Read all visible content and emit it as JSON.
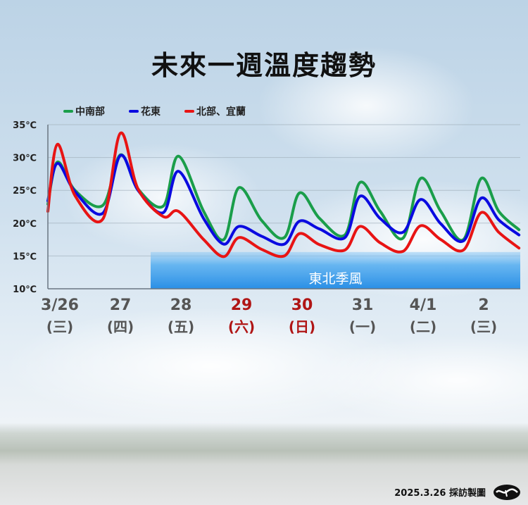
{
  "title": "未來一週溫度趨勢",
  "credit": "2025.3.26 採訪製圖",
  "logo": "cna-logo",
  "chart_data": {
    "type": "line",
    "title": "未來一週溫度趨勢",
    "ylim": [
      10,
      35
    ],
    "y_ticks": [
      "35℃",
      "30℃",
      "25℃",
      "20℃",
      "15℃",
      "10℃"
    ],
    "y_tick_values": [
      35,
      30,
      25,
      20,
      15,
      10
    ],
    "grid": true,
    "smooth": true,
    "legend_placement": "top-left",
    "x_days": [
      {
        "date": "3/26",
        "label": "3/26",
        "weekday": "(三)",
        "color": "#555555"
      },
      {
        "date": "3/27",
        "label": "27",
        "weekday": "(四)",
        "color": "#555555"
      },
      {
        "date": "3/28",
        "label": "28",
        "weekday": "(五)",
        "color": "#555555"
      },
      {
        "date": "3/29",
        "label": "29",
        "weekday": "(六)",
        "color": "#b01515"
      },
      {
        "date": "3/30",
        "label": "30",
        "weekday": "(日)",
        "color": "#b01515"
      },
      {
        "date": "3/31",
        "label": "31",
        "weekday": "(一)",
        "color": "#555555"
      },
      {
        "date": "4/1",
        "label": "4/1",
        "weekday": "(二)",
        "color": "#555555"
      },
      {
        "date": "4/2",
        "label": "2",
        "weekday": "(三)",
        "color": "#555555"
      }
    ],
    "x": [
      "3/26 07:00",
      "3/26 11:00",
      "3/26 18:00",
      "3/27 05:00",
      "3/27 12:00",
      "3/27 19:00",
      "3/28 05:00",
      "3/28 11:00",
      "3/28 21:00",
      "3/29 05:00",
      "3/29 11:00",
      "3/29 20:00",
      "3/30 05:00",
      "3/30 11:00",
      "3/30 19:00",
      "3/31 05:00",
      "3/31 11:00",
      "3/31 19:00",
      "4/1 04:00",
      "4/1 11:00",
      "4/1 19:00",
      "4/2 04:00",
      "4/2 11:00",
      "4/2 18:00",
      "4/3 02:00"
    ],
    "series": [
      {
        "name": "中南部",
        "color": "#1a9e4a",
        "values": [
          22.9,
          29.3,
          25.0,
          22.7,
          30.4,
          25.2,
          22.6,
          30.2,
          21.8,
          17.5,
          25.4,
          20.4,
          17.8,
          24.6,
          20.7,
          18.2,
          26.2,
          21.8,
          17.7,
          26.8,
          21.8,
          17.5,
          26.8,
          21.8,
          19.0
        ]
      },
      {
        "name": "花東",
        "color": "#0a0ae0",
        "values": [
          23.4,
          29.1,
          24.8,
          21.5,
          30.3,
          25.0,
          21.6,
          27.9,
          20.7,
          16.8,
          19.5,
          18.0,
          16.8,
          20.3,
          19.1,
          17.8,
          24.1,
          20.7,
          18.6,
          23.6,
          19.9,
          17.3,
          23.8,
          20.5,
          18.2
        ]
      },
      {
        "name": "北部、宜蘭",
        "color": "#e81414",
        "values": [
          21.8,
          32.0,
          24.2,
          20.6,
          33.7,
          25.2,
          21.0,
          21.8,
          17.5,
          14.9,
          17.8,
          16.0,
          15.0,
          18.4,
          16.7,
          15.9,
          19.5,
          17.0,
          15.7,
          19.6,
          17.5,
          15.9,
          21.6,
          18.6,
          16.2
        ]
      }
    ],
    "annotations": [
      {
        "text": "東北季風",
        "type": "band",
        "from": "3/28 00:00",
        "color": "#3a9be8"
      }
    ]
  }
}
